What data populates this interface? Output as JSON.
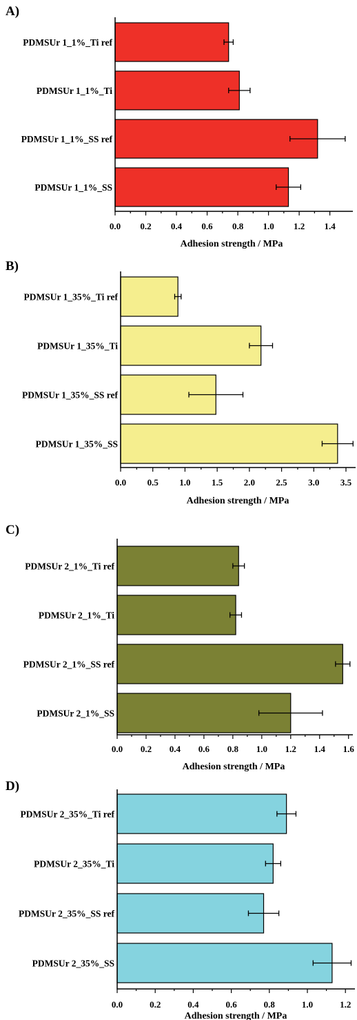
{
  "chart_data": [
    {
      "type": "bar",
      "orientation": "horizontal",
      "panel_label": "A)",
      "xlabel": "Adhesion strength / MPa",
      "xlim": [
        0,
        1.55
      ],
      "ticks": [
        0.0,
        0.2,
        0.4,
        0.6,
        0.8,
        1.0,
        1.2,
        1.4
      ],
      "tick_labels": [
        "0.0",
        "0.2",
        "0.4",
        "0.6",
        "0.8",
        "1.0",
        "1.2",
        "1.4"
      ],
      "categories": [
        "PDMSUr 1_1%_Ti ref",
        "PDMSUr 1_1%_Ti",
        "PDMSUr 1_1%_SS ref",
        "PDMSUr 1_1%_SS"
      ],
      "values": [
        0.74,
        0.81,
        1.32,
        1.13
      ],
      "errors": [
        0.03,
        0.07,
        0.18,
        0.08
      ],
      "color": "#ee3028"
    },
    {
      "type": "bar",
      "orientation": "horizontal",
      "panel_label": "B)",
      "xlabel": "Adhesion strength / MPa",
      "xlim": [
        0,
        3.65
      ],
      "ticks": [
        0.0,
        0.5,
        1.0,
        1.5,
        2.0,
        2.5,
        3.0,
        3.5
      ],
      "tick_labels": [
        "0.0",
        "0.5",
        "1.0",
        "1.5",
        "2.0",
        "2.5",
        "3.0",
        "3.5"
      ],
      "categories": [
        "PDMSUr 1_35%_Ti ref",
        "PDMSUr 1_35%_Ti",
        "PDMSUr 1_35%_SS ref",
        "PDMSUr 1_35%_SS"
      ],
      "values": [
        0.89,
        2.18,
        1.48,
        3.37
      ],
      "errors": [
        0.05,
        0.18,
        0.42,
        0.24
      ],
      "color": "#f5ee8e"
    },
    {
      "type": "bar",
      "orientation": "horizontal",
      "panel_label": "C)",
      "xlabel": "Adhesion strength / MPa",
      "xlim": [
        0,
        1.63
      ],
      "ticks": [
        0.0,
        0.2,
        0.4,
        0.6,
        0.8,
        1.0,
        1.2,
        1.4,
        1.6
      ],
      "tick_labels": [
        "0.0",
        "0.2",
        "0.4",
        "0.6",
        "0.8",
        "1.0",
        "1.2",
        "1.4",
        "1.6"
      ],
      "categories": [
        "PDMSUr 2_1%_Ti ref",
        "PDMSUr 2_1%_Ti",
        "PDMSUr 2_1%_SS ref",
        "PDMSUr 2_1%_SS"
      ],
      "values": [
        0.84,
        0.82,
        1.56,
        1.2
      ],
      "errors": [
        0.04,
        0.04,
        0.05,
        0.22
      ],
      "color": "#7b8134"
    },
    {
      "type": "bar",
      "orientation": "horizontal",
      "panel_label": "D)",
      "xlabel": "Adhesion strength / MPa",
      "xlim": [
        0,
        1.25
      ],
      "ticks": [
        0.0,
        0.2,
        0.4,
        0.6,
        0.8,
        1.0,
        1.2
      ],
      "tick_labels": [
        "0.0",
        "0.2",
        "0.4",
        "0.6",
        "0.8",
        "1.0",
        "1.2"
      ],
      "categories": [
        "PDMSUr 2_35%_Ti ref",
        "PDMSUr 2_35%_Ti",
        "PDMSUr 2_35%_SS ref",
        "PDMSUr 2_35%_SS"
      ],
      "values": [
        0.89,
        0.82,
        0.77,
        1.13
      ],
      "errors": [
        0.05,
        0.04,
        0.08,
        0.1
      ],
      "color": "#85d3df"
    }
  ]
}
